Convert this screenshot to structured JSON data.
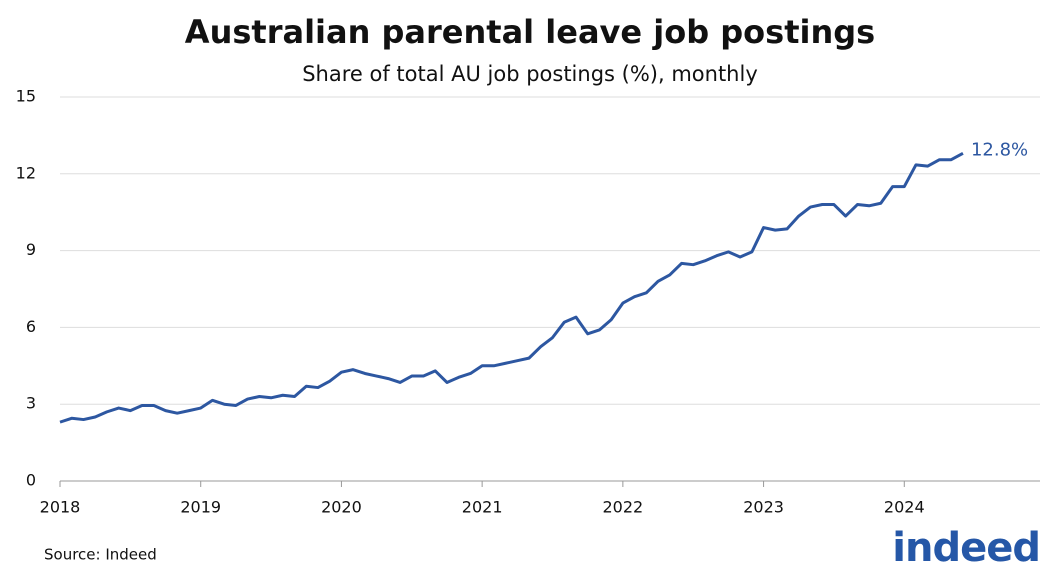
{
  "chart_data": {
    "type": "line",
    "title": "Australian parental leave job postings",
    "subtitle": "Share of total AU job postings (%), monthly",
    "source": "Source: Indeed",
    "logo": "indeed",
    "x": [
      2018,
      2018.083,
      2018.167,
      2018.25,
      2018.333,
      2018.417,
      2018.5,
      2018.583,
      2018.667,
      2018.75,
      2018.833,
      2018.917,
      2019,
      2019.083,
      2019.167,
      2019.25,
      2019.333,
      2019.417,
      2019.5,
      2019.583,
      2019.667,
      2019.75,
      2019.833,
      2019.917,
      2020,
      2020.083,
      2020.167,
      2020.25,
      2020.333,
      2020.417,
      2020.5,
      2020.583,
      2020.667,
      2020.75,
      2020.833,
      2020.917,
      2021,
      2021.083,
      2021.167,
      2021.25,
      2021.333,
      2021.417,
      2021.5,
      2021.583,
      2021.667,
      2021.75,
      2021.833,
      2021.917,
      2022,
      2022.083,
      2022.167,
      2022.25,
      2022.333,
      2022.417,
      2022.5,
      2022.583,
      2022.667,
      2022.75,
      2022.833,
      2022.917,
      2023,
      2023.083,
      2023.167,
      2023.25,
      2023.333,
      2023.417,
      2023.5,
      2023.583,
      2023.667,
      2023.75,
      2023.833,
      2023.917,
      2024,
      2024.083,
      2024.167,
      2024.25,
      2024.333,
      2024.417
    ],
    "series": [
      {
        "color": "#2d57a1",
        "values": [
          2.3,
          2.45,
          2.4,
          2.5,
          2.7,
          2.85,
          2.75,
          2.95,
          2.95,
          2.75,
          2.65,
          2.75,
          2.85,
          3.15,
          3.0,
          2.95,
          3.2,
          3.3,
          3.25,
          3.35,
          3.3,
          3.7,
          3.65,
          3.9,
          4.25,
          4.35,
          4.2,
          4.1,
          4.0,
          3.85,
          4.1,
          4.1,
          4.3,
          3.85,
          4.05,
          4.2,
          4.5,
          4.5,
          4.6,
          4.7,
          4.8,
          5.25,
          5.6,
          6.2,
          6.4,
          5.75,
          5.9,
          6.3,
          6.95,
          7.2,
          7.35,
          7.8,
          8.05,
          8.5,
          8.45,
          8.6,
          8.8,
          8.95,
          8.75,
          8.95,
          9.9,
          9.8,
          9.85,
          10.35,
          10.7,
          10.8,
          10.8,
          10.35,
          10.8,
          10.75,
          10.85,
          11.5,
          11.5,
          12.35,
          12.3,
          12.55,
          12.55,
          12.8
        ],
        "value_labels": [
          null,
          null,
          null,
          null,
          null,
          null,
          null,
          null,
          null,
          null,
          null,
          null,
          null,
          null,
          null,
          null,
          null,
          null,
          null,
          null,
          null,
          null,
          null,
          null,
          null,
          null,
          null,
          null,
          null,
          null,
          null,
          null,
          null,
          null,
          null,
          null,
          null,
          null,
          null,
          null,
          null,
          null,
          null,
          null,
          null,
          null,
          null,
          null,
          null,
          null,
          null,
          null,
          null,
          null,
          null,
          null,
          null,
          null,
          null,
          null,
          null,
          null,
          null,
          null,
          null,
          null,
          null,
          null,
          null,
          null,
          null,
          null,
          null,
          null,
          null,
          null,
          null,
          "12.8%"
        ]
      }
    ],
    "xlim": [
      2018,
      2025
    ],
    "xticks": [
      2018,
      2019,
      2020,
      2021,
      2022,
      2023,
      2024
    ],
    "ylim": [
      0,
      15
    ],
    "yticks": [
      0,
      3,
      6,
      9,
      12,
      15
    ],
    "grid": true
  }
}
